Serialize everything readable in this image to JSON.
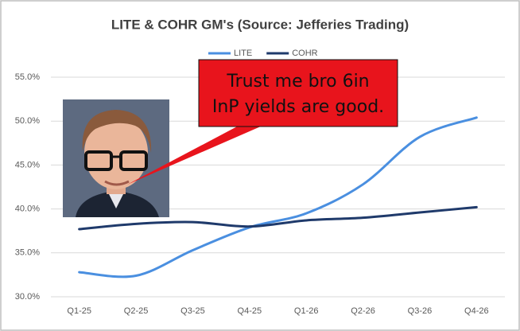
{
  "chart_data": {
    "type": "line",
    "title": "LITE & COHR GM's (Source: Jefferies Trading)",
    "categories": [
      "Q1-25",
      "Q2-25",
      "Q3-25",
      "Q4-25",
      "Q1-26",
      "Q2-26",
      "Q3-26",
      "Q4-26"
    ],
    "series": [
      {
        "name": "LITE",
        "color": "#4a8fe0",
        "values": [
          32.8,
          32.4,
          35.3,
          37.9,
          39.5,
          42.8,
          48.2,
          50.4
        ]
      },
      {
        "name": "COHR",
        "color": "#1f3a6b",
        "values": [
          37.7,
          38.3,
          38.5,
          38.0,
          38.7,
          39.0,
          39.6,
          40.2
        ]
      }
    ],
    "ylim": [
      30,
      55
    ],
    "yticks": [
      {
        "value": 30,
        "label": "30.0%"
      },
      {
        "value": 35,
        "label": "35.0%"
      },
      {
        "value": 40,
        "label": "40.0%"
      },
      {
        "value": 45,
        "label": "45.0%"
      },
      {
        "value": 50,
        "label": "50.0%"
      },
      {
        "value": 55,
        "label": "55.0%"
      }
    ],
    "grid": true,
    "legend": "top",
    "annotation": [
      "Trust me bro 6in",
      "InP yields are good."
    ]
  }
}
